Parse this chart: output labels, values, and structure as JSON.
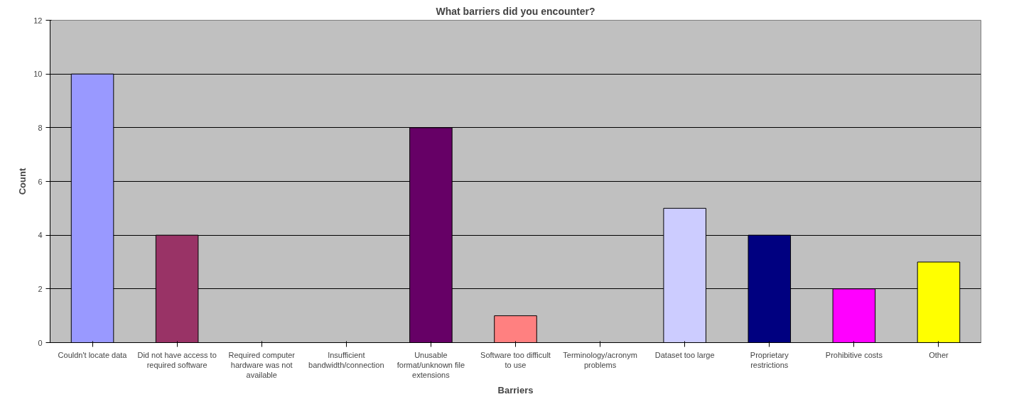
{
  "chart_data": {
    "type": "bar",
    "title": "What barriers did you encounter?",
    "xlabel": "Barriers",
    "ylabel": "Count",
    "categories": [
      "Couldn't locate data",
      "Did not have access to required software",
      "Required computer hardware was not available",
      "Insufficient bandwidth/connection",
      "Unusable format/unknown file extensions",
      "Software too difficult to use",
      "Terminology/acronym problems",
      "Dataset too large",
      "Proprietary restrictions",
      "Prohibitive costs",
      "Other"
    ],
    "values": [
      10,
      4,
      0,
      0,
      8,
      1,
      0,
      5,
      4,
      2,
      3
    ],
    "colors": [
      "#9999ff",
      "#993366",
      null,
      null,
      "#660066",
      "#ff8080",
      null,
      "#ccccff",
      "#000080",
      "#ff00ff",
      "#ffff00"
    ],
    "ylim": [
      0,
      12
    ],
    "yticks": [
      0,
      2,
      4,
      6,
      8,
      10,
      12
    ],
    "grid": "y"
  }
}
